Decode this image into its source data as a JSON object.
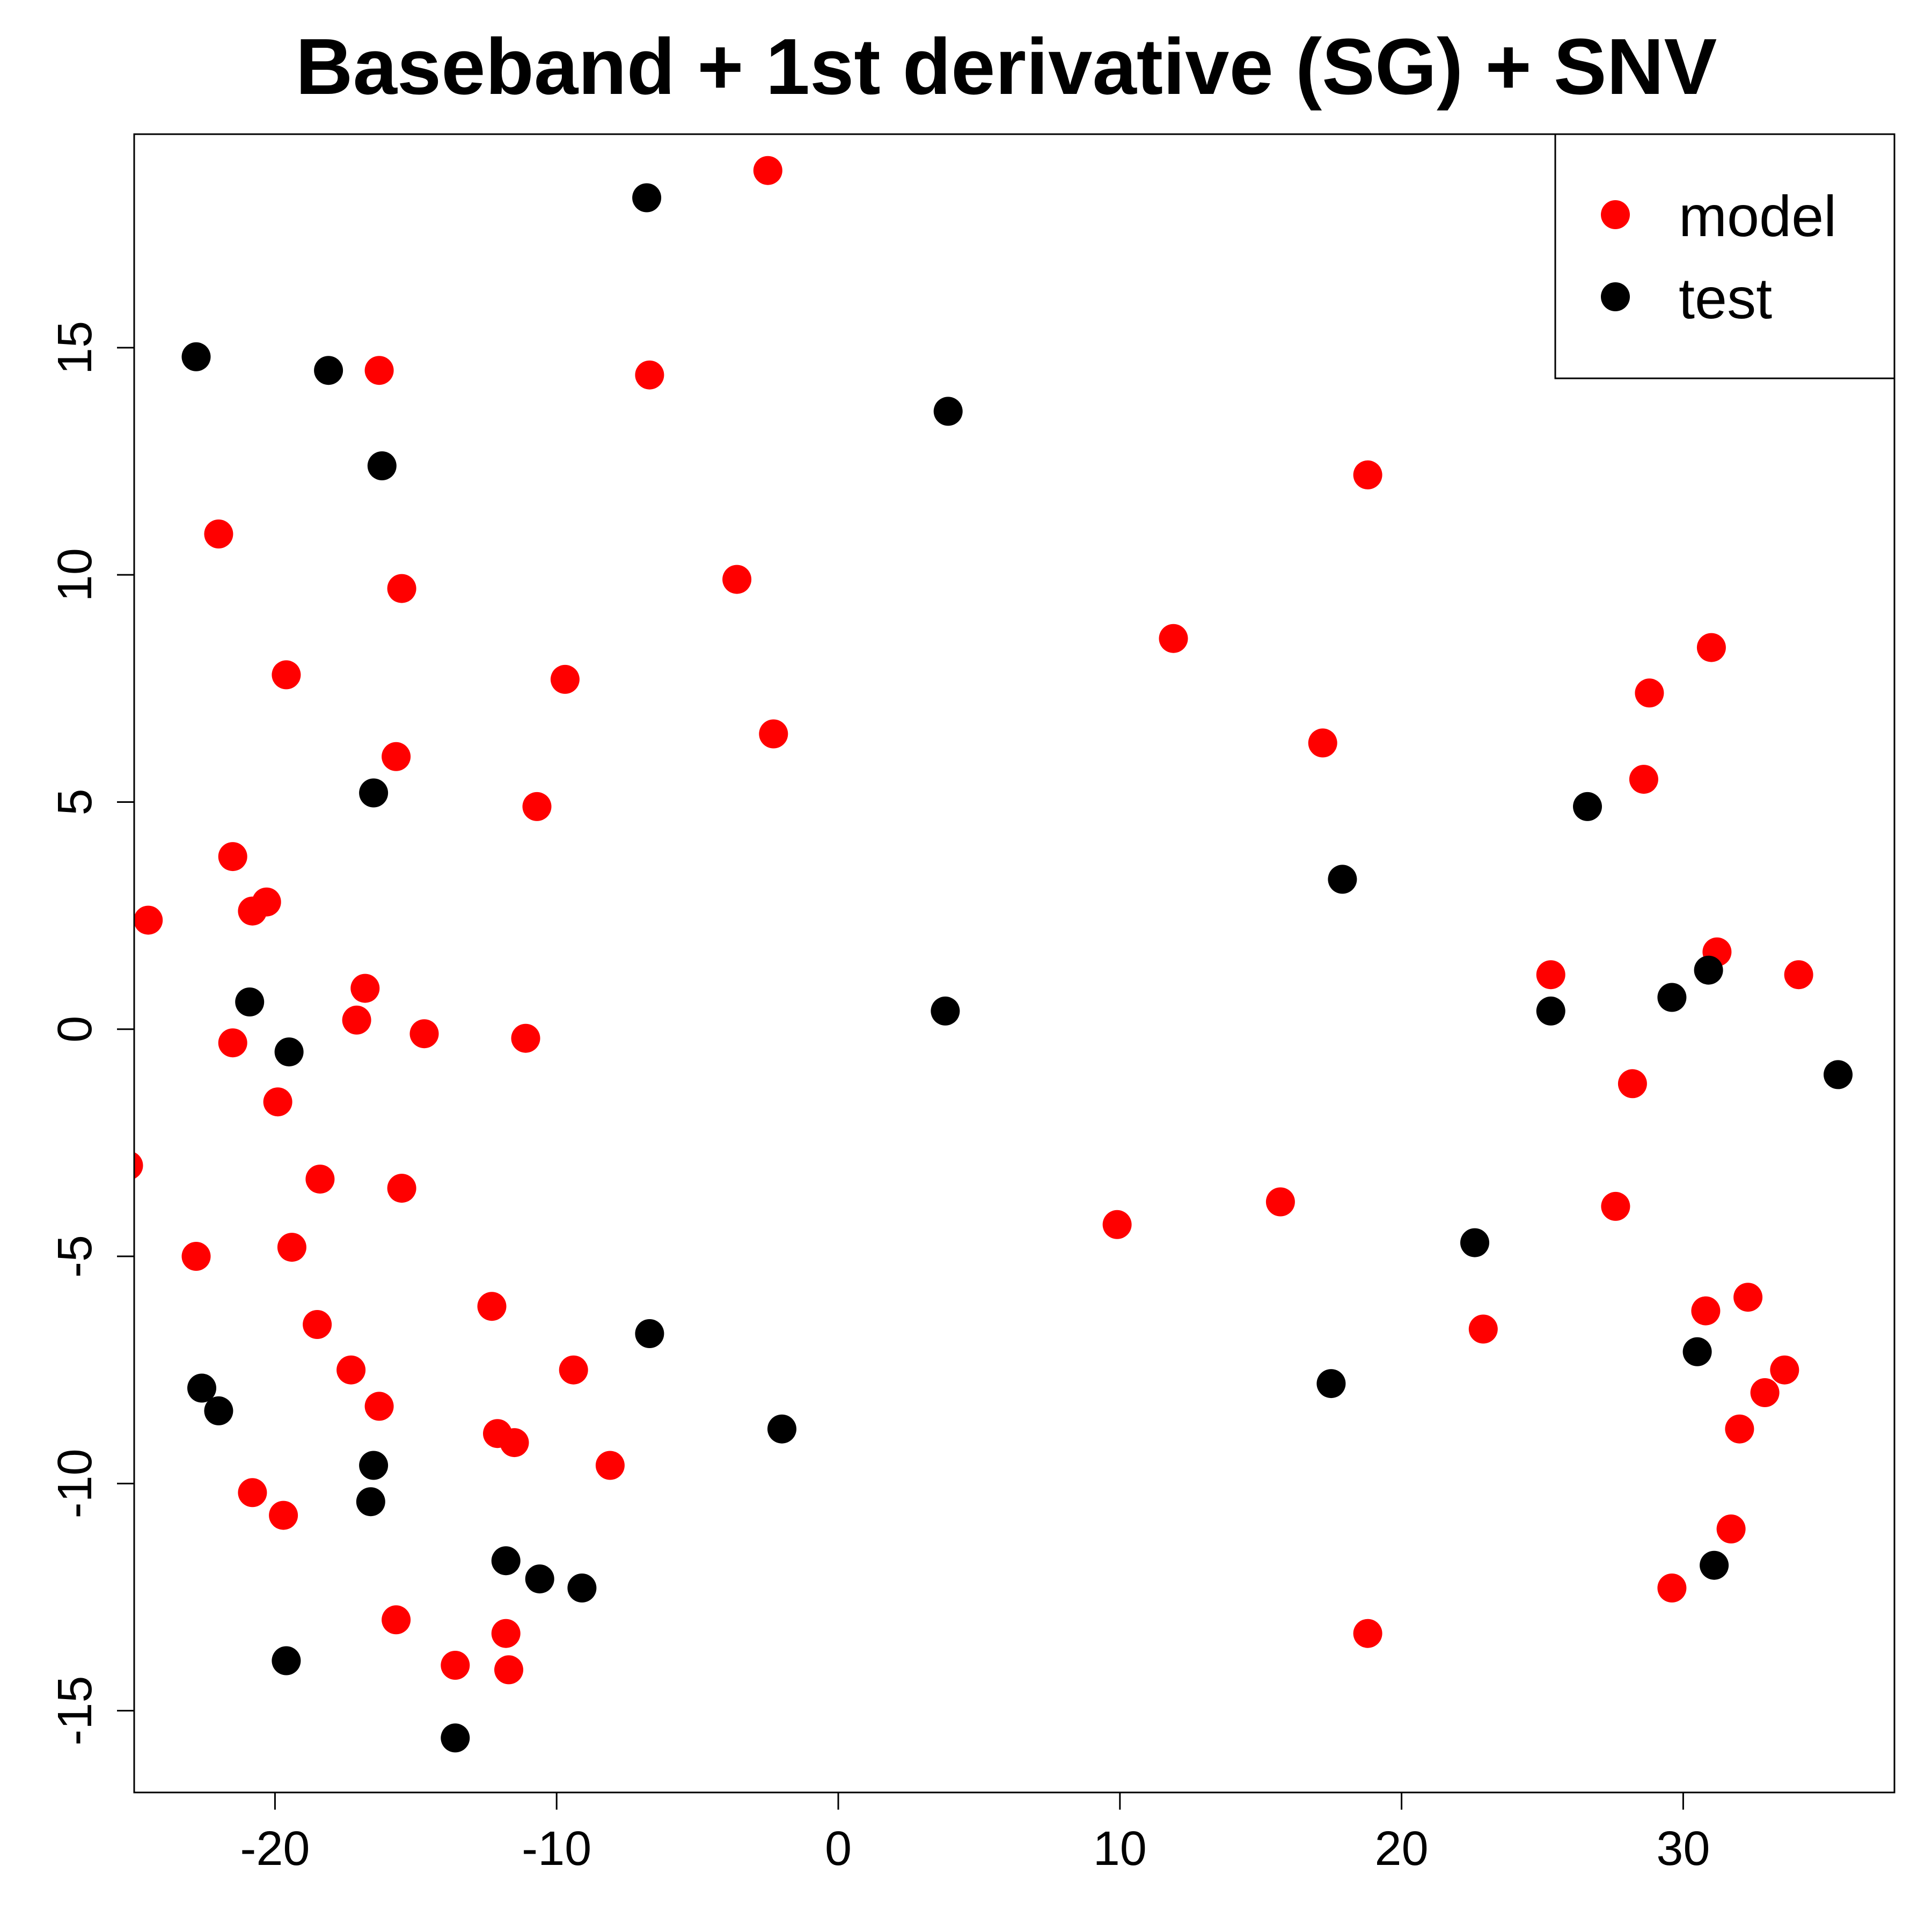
{
  "chart_data": {
    "type": "scatter",
    "title": "Baseband + 1st derivative (SG) + SNV",
    "xlabel": "",
    "ylabel": "",
    "xlim": [
      -25,
      37.5
    ],
    "ylim": [
      -16.8,
      19.7
    ],
    "grid": false,
    "legend_position": "top-right",
    "x_ticks": [
      -20,
      -10,
      0,
      10,
      20,
      30
    ],
    "y_ticks": [
      -15,
      -10,
      -5,
      0,
      5,
      10,
      15
    ],
    "x_tick_labels": [
      "-20",
      "-10",
      "0",
      "10",
      "20",
      "30"
    ],
    "y_tick_labels": [
      "-15",
      "-10",
      "-5",
      "0",
      "5",
      "10",
      "15"
    ],
    "series": [
      {
        "name": "model",
        "color": "#ff0000",
        "points": [
          [
            -2.5,
            18.9
          ],
          [
            -16.3,
            14.5
          ],
          [
            -6.7,
            14.4
          ],
          [
            -22.0,
            10.9
          ],
          [
            -15.5,
            9.7
          ],
          [
            -3.6,
            9.9
          ],
          [
            -19.6,
            7.8
          ],
          [
            -9.7,
            7.7
          ],
          [
            -2.3,
            6.5
          ],
          [
            -15.7,
            6.0
          ],
          [
            -10.7,
            4.9
          ],
          [
            -21.5,
            3.8
          ],
          [
            -20.3,
            2.8
          ],
          [
            -20.8,
            2.6
          ],
          [
            -24.5,
            2.4
          ],
          [
            -16.8,
            0.9
          ],
          [
            -17.1,
            0.2
          ],
          [
            -14.7,
            -0.1
          ],
          [
            -11.1,
            -0.2
          ],
          [
            -21.5,
            -0.3
          ],
          [
            -19.9,
            -1.6
          ],
          [
            -18.4,
            -3.3
          ],
          [
            -15.5,
            -3.5
          ],
          [
            -25.2,
            -3.0
          ],
          [
            -22.8,
            -5.0
          ],
          [
            -19.4,
            -4.8
          ],
          [
            -18.5,
            -6.5
          ],
          [
            -17.3,
            -7.5
          ],
          [
            -16.3,
            -8.3
          ],
          [
            -12.3,
            -6.1
          ],
          [
            -9.4,
            -7.5
          ],
          [
            -12.1,
            -8.9
          ],
          [
            -11.5,
            -9.1
          ],
          [
            -8.1,
            -9.6
          ],
          [
            -20.8,
            -10.2
          ],
          [
            -19.7,
            -10.7
          ],
          [
            -15.7,
            -13.0
          ],
          [
            -11.8,
            -13.3
          ],
          [
            -13.6,
            -14.0
          ],
          [
            -11.7,
            -14.1
          ],
          [
            9.9,
            -4.3
          ],
          [
            15.7,
            -3.8
          ],
          [
            11.9,
            8.6
          ],
          [
            17.2,
            6.3
          ],
          [
            18.8,
            12.2
          ],
          [
            18.8,
            -13.3
          ],
          [
            22.9,
            -6.6
          ],
          [
            25.3,
            1.2
          ],
          [
            27.6,
            -3.9
          ],
          [
            28.2,
            -1.2
          ],
          [
            28.6,
            5.5
          ],
          [
            28.8,
            7.4
          ],
          [
            31.0,
            8.4
          ],
          [
            31.2,
            1.7
          ],
          [
            34.1,
            1.2
          ],
          [
            30.8,
            -6.2
          ],
          [
            32.3,
            -5.9
          ],
          [
            33.6,
            -7.5
          ],
          [
            32.9,
            -8.0
          ],
          [
            32.0,
            -8.8
          ],
          [
            31.7,
            -11.0
          ],
          [
            29.6,
            -12.3
          ]
        ]
      },
      {
        "name": "test",
        "color": "#000000",
        "points": [
          [
            -6.8,
            18.3
          ],
          [
            -22.8,
            14.8
          ],
          [
            -18.1,
            14.5
          ],
          [
            3.9,
            13.6
          ],
          [
            -16.2,
            12.4
          ],
          [
            -16.5,
            5.2
          ],
          [
            -20.9,
            0.6
          ],
          [
            -19.5,
            -0.5
          ],
          [
            3.8,
            0.4
          ],
          [
            17.9,
            3.3
          ],
          [
            26.6,
            4.9
          ],
          [
            25.3,
            0.4
          ],
          [
            29.6,
            0.7
          ],
          [
            30.9,
            1.3
          ],
          [
            35.5,
            -1.0
          ],
          [
            22.6,
            -4.7
          ],
          [
            -6.7,
            -6.7
          ],
          [
            -22.6,
            -7.9
          ],
          [
            -22.0,
            -8.4
          ],
          [
            -16.5,
            -9.6
          ],
          [
            -16.6,
            -10.4
          ],
          [
            -2.0,
            -8.8
          ],
          [
            -11.8,
            -11.7
          ],
          [
            -10.6,
            -12.1
          ],
          [
            -9.1,
            -12.3
          ],
          [
            -19.6,
            -13.9
          ],
          [
            -13.6,
            -15.6
          ],
          [
            17.5,
            -7.8
          ],
          [
            30.5,
            -7.1
          ],
          [
            31.1,
            -11.8
          ]
        ]
      }
    ]
  }
}
